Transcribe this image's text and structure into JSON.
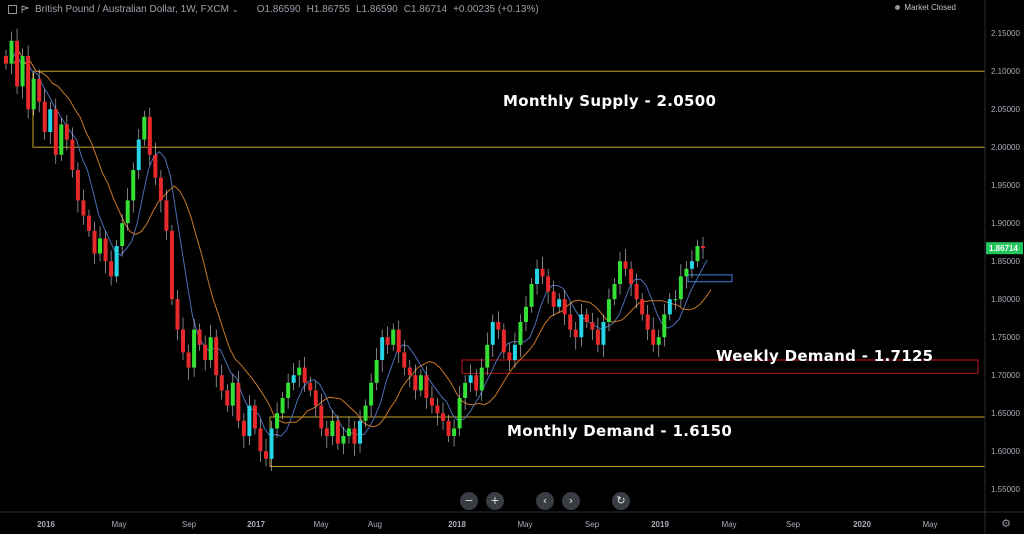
{
  "header": {
    "symbol": "British Pound / Australian Dollar, 1W, FXCM",
    "open": "O1.86590",
    "high": "H1.86755",
    "low": "L1.86590",
    "close": "C1.86714",
    "change": "+0.00235 (+0.13%)",
    "market_status": "Market Closed"
  },
  "annotations": {
    "monthly_supply": "Monthly Supply - 2.0500",
    "weekly_demand": "Weekly Demand - 1.7125",
    "monthly_demand": "Monthly Demand - 1.6150"
  },
  "nav_icons": [
    "zoom-out-icon",
    "zoom-in-icon",
    "scroll-left-icon",
    "scroll-right-icon",
    "reset-icon"
  ],
  "colors": {
    "background": "#000000",
    "up_candle": "#26d6e6",
    "down_candle": "#e8292b",
    "up_candle_alt": "#33e033",
    "zone_line": "#c9a227",
    "weekly_zone": "#c01818",
    "recent_zone": "#3f7fd8",
    "ma_fast": "#4a6fb5",
    "ma_slow": "#c8782a",
    "price_tag": "#22c55e",
    "axis_text": "#a8adb8"
  },
  "chart_data": {
    "type": "candlestick",
    "title": "British Pound / Australian Dollar, 1W, FXCM",
    "ylim": [
      1.52,
      2.17
    ],
    "y_ticks": [
      "2.15000",
      "2.10000",
      "2.05000",
      "2.00000",
      "1.95000",
      "1.90000",
      "1.85000",
      "1.80000",
      "1.75000",
      "1.70000",
      "1.65000",
      "1.60000",
      "1.55000"
    ],
    "x_ticks": [
      "2016",
      "May",
      "Sep",
      "2017",
      "May",
      "Aug",
      "2018",
      "May",
      "Sep",
      "2019",
      "May",
      "Sep",
      "2020",
      "May"
    ],
    "last_price": "1.86714",
    "zones": [
      {
        "label": "Monthly Supply - 2.0500",
        "top": 2.1,
        "bottom": 2.0,
        "color": "#c9a227"
      },
      {
        "label": "Weekly Demand - 1.7125",
        "top": 1.72,
        "bottom": 1.7025,
        "color": "#c01818"
      },
      {
        "label": "Monthly Demand - 1.6150",
        "top": 1.645,
        "bottom": 1.58,
        "color": "#c9a227"
      },
      {
        "label": "",
        "top": 1.832,
        "bottom": 1.823,
        "color": "#3f7fd8"
      }
    ],
    "closes": [
      2.11,
      2.14,
      2.08,
      2.12,
      2.05,
      2.09,
      2.06,
      2.02,
      2.05,
      1.99,
      2.03,
      2.01,
      1.97,
      1.93,
      1.91,
      1.89,
      1.86,
      1.88,
      1.85,
      1.83,
      1.87,
      1.9,
      1.93,
      1.97,
      2.01,
      2.04,
      1.99,
      1.96,
      1.93,
      1.89,
      1.8,
      1.76,
      1.73,
      1.71,
      1.76,
      1.74,
      1.72,
      1.75,
      1.7,
      1.68,
      1.66,
      1.69,
      1.64,
      1.62,
      1.66,
      1.63,
      1.6,
      1.59,
      1.63,
      1.65,
      1.67,
      1.69,
      1.7,
      1.71,
      1.69,
      1.68,
      1.66,
      1.63,
      1.62,
      1.64,
      1.61,
      1.62,
      1.63,
      1.61,
      1.64,
      1.66,
      1.69,
      1.72,
      1.75,
      1.74,
      1.76,
      1.73,
      1.71,
      1.7,
      1.68,
      1.7,
      1.67,
      1.66,
      1.65,
      1.64,
      1.62,
      1.63,
      1.67,
      1.69,
      1.7,
      1.68,
      1.71,
      1.74,
      1.77,
      1.76,
      1.73,
      1.72,
      1.74,
      1.77,
      1.79,
      1.82,
      1.84,
      1.83,
      1.81,
      1.79,
      1.8,
      1.78,
      1.76,
      1.75,
      1.78,
      1.77,
      1.76,
      1.74,
      1.77,
      1.8,
      1.82,
      1.85,
      1.84,
      1.82,
      1.8,
      1.78,
      1.76,
      1.74,
      1.75,
      1.78,
      1.8,
      1.8,
      1.83,
      1.84,
      1.85,
      1.87,
      1.867
    ]
  }
}
